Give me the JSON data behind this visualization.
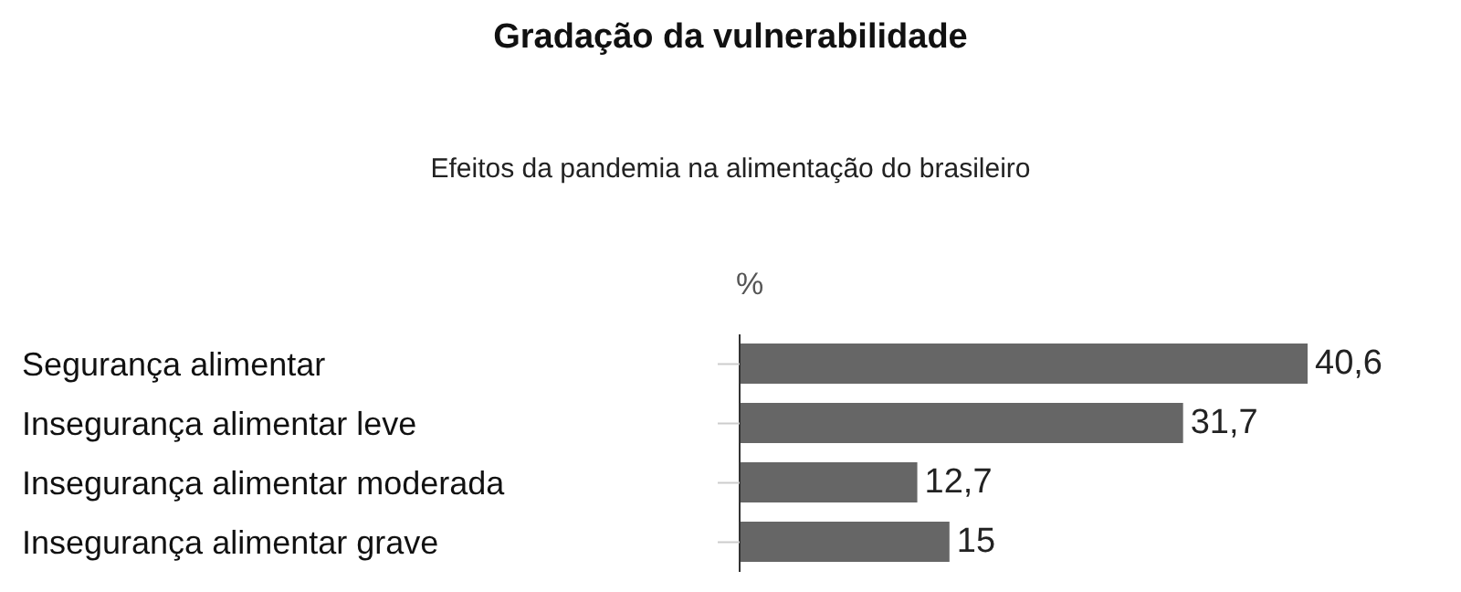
{
  "chart_data": {
    "type": "bar",
    "orientation": "horizontal",
    "title": "Gradação da vulnerabilidade",
    "subtitle": "Efeitos da pandemia na alimentação do brasileiro",
    "xlabel": "%",
    "categories": [
      "Segurança alimentar",
      "Insegurança alimentar leve",
      "Insegurança alimentar moderada",
      "Insegurança alimentar grave"
    ],
    "values": [
      40.6,
      31.7,
      12.7,
      15
    ],
    "value_labels": [
      "40,6",
      "31,7",
      "12,7",
      "15"
    ],
    "color": "#666666",
    "grid": false,
    "legend": false
  }
}
